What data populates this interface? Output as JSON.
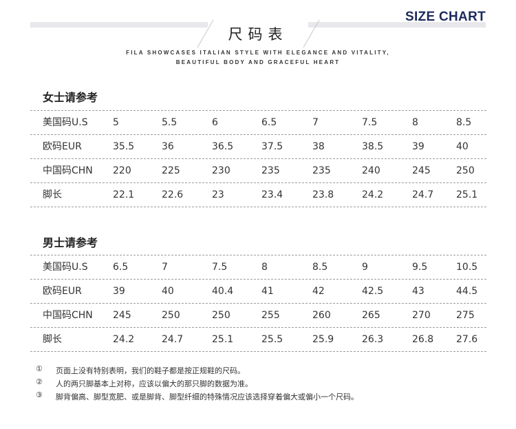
{
  "header": {
    "brand_label": "SIZE CHART",
    "title": "尺码表",
    "subtitle_line1": "FILA SHOWCASES ITALIAN STYLE WITH ELEGANCE AND VITALITY,",
    "subtitle_line2": "BEAUTIFUL BODY AND GRACEFUL HEART"
  },
  "women": {
    "title": "女士请参考",
    "rows": [
      {
        "label": "美国码U.S",
        "values": [
          "5",
          "5.5",
          "6",
          "6.5",
          "7",
          "7.5",
          "8",
          "8.5"
        ]
      },
      {
        "label": "欧码EUR",
        "values": [
          "35.5",
          "36",
          "36.5",
          "37.5",
          "38",
          "38.5",
          "39",
          "40"
        ]
      },
      {
        "label": "中国码CHN",
        "values": [
          "220",
          "225",
          "230",
          "235",
          "235",
          "240",
          "245",
          "250"
        ]
      },
      {
        "label": "脚长",
        "values": [
          "22.1",
          "22.6",
          "23",
          "23.4",
          "23.8",
          "24.2",
          "24.7",
          "25.1"
        ]
      }
    ]
  },
  "men": {
    "title": "男士请参考",
    "rows": [
      {
        "label": "美国码U.S",
        "values": [
          "6.5",
          "7",
          "7.5",
          "8",
          "8.5",
          "9",
          "9.5",
          "10.5"
        ]
      },
      {
        "label": "欧码EUR",
        "values": [
          "39",
          "40",
          "40.4",
          "41",
          "42",
          "42.5",
          "43",
          "44.5"
        ]
      },
      {
        "label": "中国码CHN",
        "values": [
          "245",
          "250",
          "250",
          "255",
          "260",
          "265",
          "270",
          "275"
        ]
      },
      {
        "label": "脚长",
        "values": [
          "24.2",
          "24.7",
          "25.1",
          "25.5",
          "25.9",
          "26.3",
          "26.8",
          "27.6"
        ]
      }
    ]
  },
  "notes": [
    {
      "marker": "①",
      "text": "页面上没有特别表明，我们的鞋子都是按正规鞋的尺码。"
    },
    {
      "marker": "②",
      "text": "人的两只脚基本上对称，应该以偏大的那只脚的数据为准。"
    },
    {
      "marker": "③",
      "text": "脚背偏高、脚型宽肥、或是脚背、脚型纤细的特殊情况应该选择穿着偏大或偏小一个尺码。"
    }
  ],
  "colors": {
    "brand_navy": "#1c2a5c",
    "banner_gray": "#e8e8ec",
    "rule_gray": "#9a9a9a"
  }
}
